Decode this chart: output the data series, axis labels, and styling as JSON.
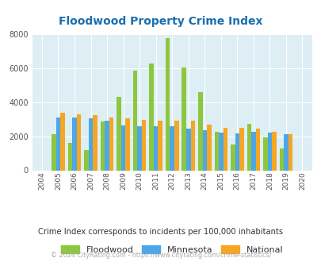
{
  "title": "Floodwood Property Crime Index",
  "years": [
    2004,
    2005,
    2006,
    2007,
    2008,
    2009,
    2010,
    2011,
    2012,
    2013,
    2014,
    2015,
    2016,
    2017,
    2018,
    2019,
    2020
  ],
  "floodwood": [
    0,
    2100,
    1600,
    1200,
    2850,
    4300,
    5850,
    6250,
    7750,
    6050,
    4600,
    2250,
    1500,
    2750,
    1950,
    1300,
    0
  ],
  "minnesota": [
    0,
    3100,
    3100,
    3050,
    2900,
    2650,
    2600,
    2600,
    2600,
    2450,
    2350,
    2200,
    2150,
    2250,
    2200,
    2100,
    0
  ],
  "national": [
    0,
    3400,
    3300,
    3250,
    3100,
    3050,
    2950,
    2900,
    2900,
    2900,
    2700,
    2500,
    2500,
    2450,
    2250,
    2100,
    0
  ],
  "floodwood_color": "#8dc63f",
  "minnesota_color": "#4da6e8",
  "national_color": "#f5a623",
  "bg_color": "#ddeef4",
  "ylim": [
    0,
    8000
  ],
  "yticks": [
    0,
    2000,
    4000,
    6000,
    8000
  ],
  "subtitle": "Crime Index corresponds to incidents per 100,000 inhabitants",
  "footer": "© 2024 CityRating.com - https://www.cityrating.com/crime-statistics/",
  "title_color": "#1a6faf",
  "subtitle_color": "#333333",
  "footer_color": "#aaaaaa"
}
